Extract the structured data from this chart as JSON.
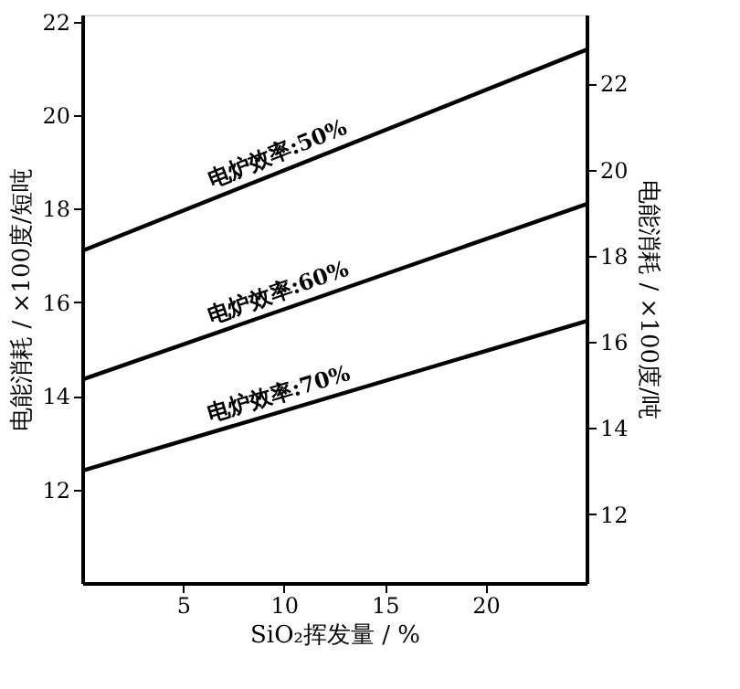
{
  "chart_data": {
    "type": "line",
    "xlabel": "SiO₂挥发量 / %",
    "ylabel": "电能消耗 / ×100度/短吨",
    "y2label": "电能消耗 / ×100度/吨",
    "x": [
      0,
      25
    ],
    "xlim": [
      0,
      25
    ],
    "xticks": [
      5,
      10,
      15,
      20
    ],
    "ylim": [
      10,
      22.15
    ],
    "yticks": [
      12,
      14,
      16,
      18,
      20,
      22
    ],
    "y2lim": [
      10.4,
      23.6
    ],
    "y2ticks": [
      12,
      14,
      16,
      18,
      20,
      22
    ],
    "grid": false,
    "legend": false,
    "marker": "none",
    "line_style": "solid",
    "series": [
      {
        "name": "电炉效率:50%",
        "color": "#000000",
        "values": [
          17.1,
          21.4
        ]
      },
      {
        "name": "电炉效率:60%",
        "color": "#000000",
        "values": [
          14.35,
          18.1
        ]
      },
      {
        "name": "电炉效率:70%",
        "color": "#000000",
        "values": [
          12.4,
          15.6
        ]
      }
    ]
  }
}
